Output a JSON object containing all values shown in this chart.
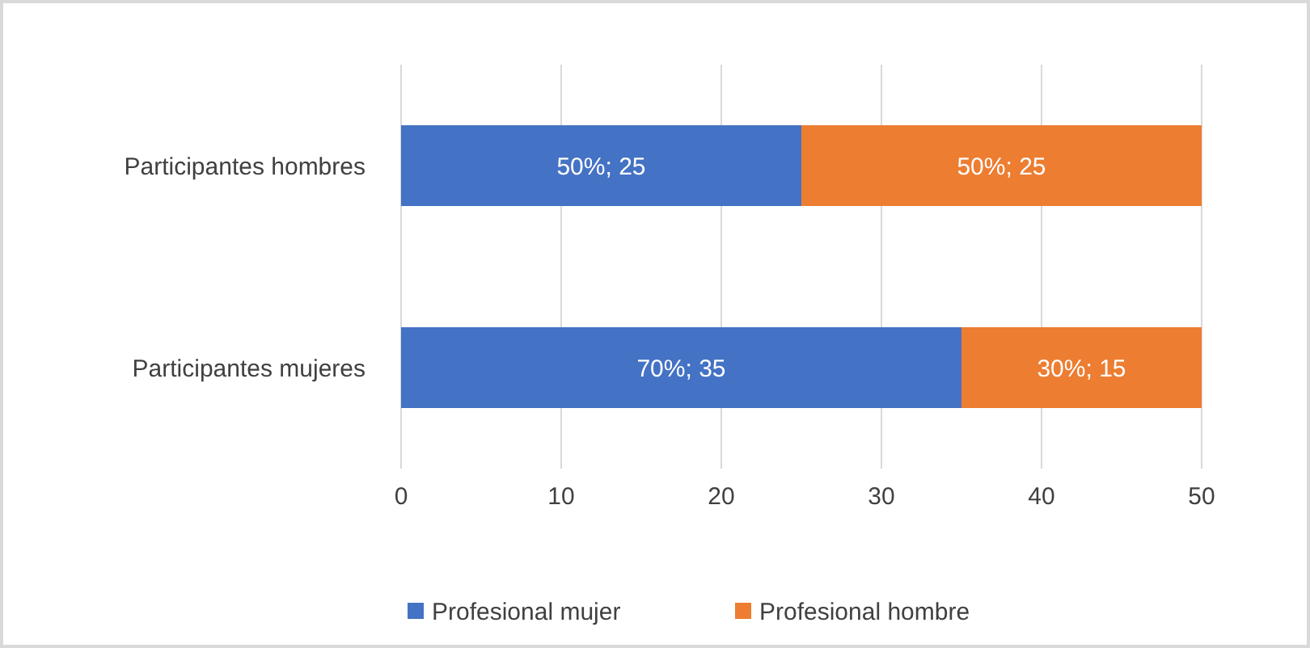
{
  "chart_data": {
    "type": "bar",
    "orientation": "horizontal",
    "stacked": true,
    "categories": [
      "Participantes hombres",
      "Participantes mujeres"
    ],
    "series": [
      {
        "name": "Profesional mujer",
        "color": "#4472c4",
        "values": [
          25,
          35
        ],
        "value_labels": [
          "50%; 25",
          "70%; 35"
        ]
      },
      {
        "name": "Profesional hombre",
        "color": "#ed7d31",
        "values": [
          25,
          15
        ],
        "value_labels": [
          "50%; 25",
          "30%; 15"
        ]
      }
    ],
    "xlim": [
      0,
      50
    ],
    "xticks": [
      0,
      10,
      20,
      30,
      40,
      50
    ],
    "grid": "x",
    "legend": "bottom"
  }
}
